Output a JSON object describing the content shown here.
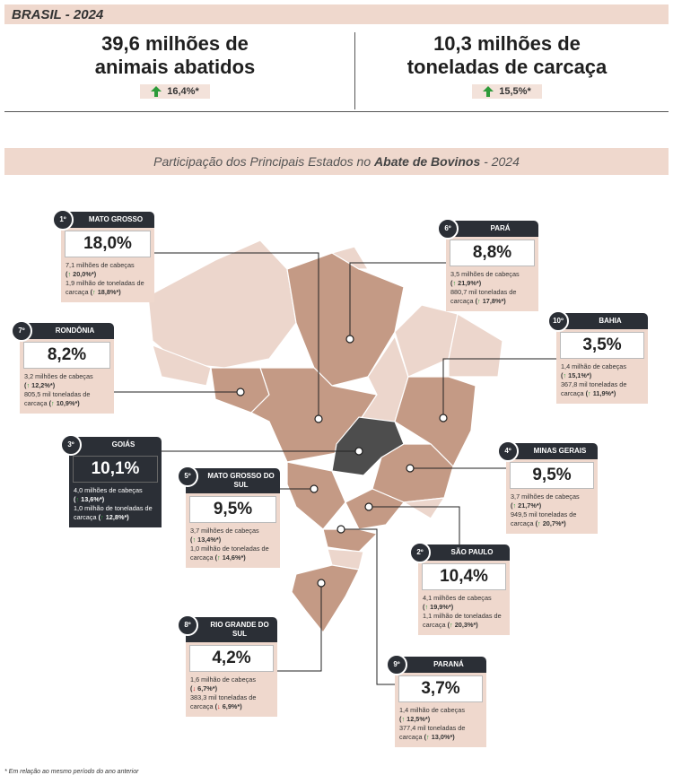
{
  "header": {
    "title": "BRASIL - 2024"
  },
  "kpis": [
    {
      "line1": "39,6 milhões de",
      "line2": "animais abatidos",
      "change": "16,4%*"
    },
    {
      "line1": "10,3 milhões de",
      "line2": "toneladas de carcaça",
      "change": "15,5%*"
    }
  ],
  "section": {
    "prefix": "Participação dos Principais Estados no",
    "bold": "Abate de Bovinos",
    "suffix": "- 2024"
  },
  "states": [
    {
      "rank": "1º",
      "name": "MATO GROSSO",
      "share": "18,0%",
      "heads": "7,1 milhões de cabeças",
      "heads_change": "(↑ 20,0%*)",
      "tonnage": "1,9 milhão de toneladas de carcaça",
      "tonnage_change": "(↑ 18,8%*)"
    },
    {
      "rank": "6º",
      "name": "PARÁ",
      "share": "8,8%",
      "heads": "3,5 milhões de cabeças",
      "heads_change": "(↑ 21,9%*)",
      "tonnage": "880,7 mil toneladas de carcaça",
      "tonnage_change": "(↑ 17,8%*)"
    },
    {
      "rank": "7º",
      "name": "RONDÔNIA",
      "share": "8,2%",
      "heads": "3,2 milhões de cabeças",
      "heads_change": "(↑ 12,2%*)",
      "tonnage": "805,5 mil toneladas de carcaça",
      "tonnage_change": "(↑ 10,9%*)"
    },
    {
      "rank": "10º",
      "name": "BAHIA",
      "share": "3,5%",
      "heads": "1,4 milhão de cabeças",
      "heads_change": "(↑ 15,1%*)",
      "tonnage": "367,8 mil toneladas de carcaça",
      "tonnage_change": "(↑ 11,9%*)"
    },
    {
      "rank": "3º",
      "name": "GOIÁS",
      "share": "10,1%",
      "heads": "4,0 milhões de cabeças",
      "heads_change": "(↑ 13,6%*)",
      "tonnage": "1,0 milhão de toneladas de carcaça",
      "tonnage_change": "(↑ 12,8%*)"
    },
    {
      "rank": "5º",
      "name": "MATO GROSSO DO SUL",
      "share": "9,5%",
      "heads": "3,7 milhões de cabeças",
      "heads_change": "(↑ 13,4%*)",
      "tonnage": "1,0 milhão de toneladas de carcaça",
      "tonnage_change": "(↑ 14,6%*)"
    },
    {
      "rank": "4º",
      "name": "MINAS GERAIS",
      "share": "9,5%",
      "heads": "3,7 milhões de cabeças",
      "heads_change": "(↑ 21,7%*)",
      "tonnage": "949,5 mil toneladas de carcaça",
      "tonnage_change": "(↑ 20,7%*)"
    },
    {
      "rank": "2º",
      "name": "SÃO PAULO",
      "share": "10,4%",
      "heads": "4,1 milhões de cabeças",
      "heads_change": "(↑ 19,9%*)",
      "tonnage": "1,1 milhão de toneladas de carcaça",
      "tonnage_change": "(↑ 20,3%*)"
    },
    {
      "rank": "8º",
      "name": "RIO GRANDE DO SUL",
      "share": "4,2%",
      "heads": "1,6 milhão de cabeças",
      "heads_change": "(↓ 6,7%*)",
      "tonnage": "383,3 mil toneladas de carcaça",
      "tonnage_change": "(↓ 6,9%*)"
    },
    {
      "rank": "9º",
      "name": "PARANÁ",
      "share": "3,7%",
      "heads": "1,4 milhão de cabeças",
      "heads_change": "(↑ 12,5%*)",
      "tonnage": "377,4 mil toneladas de carcaça",
      "tonnage_change": "(↑ 13,0%*)"
    }
  ],
  "footnote": "* Em relação ao mesmo período do ano anterior"
}
